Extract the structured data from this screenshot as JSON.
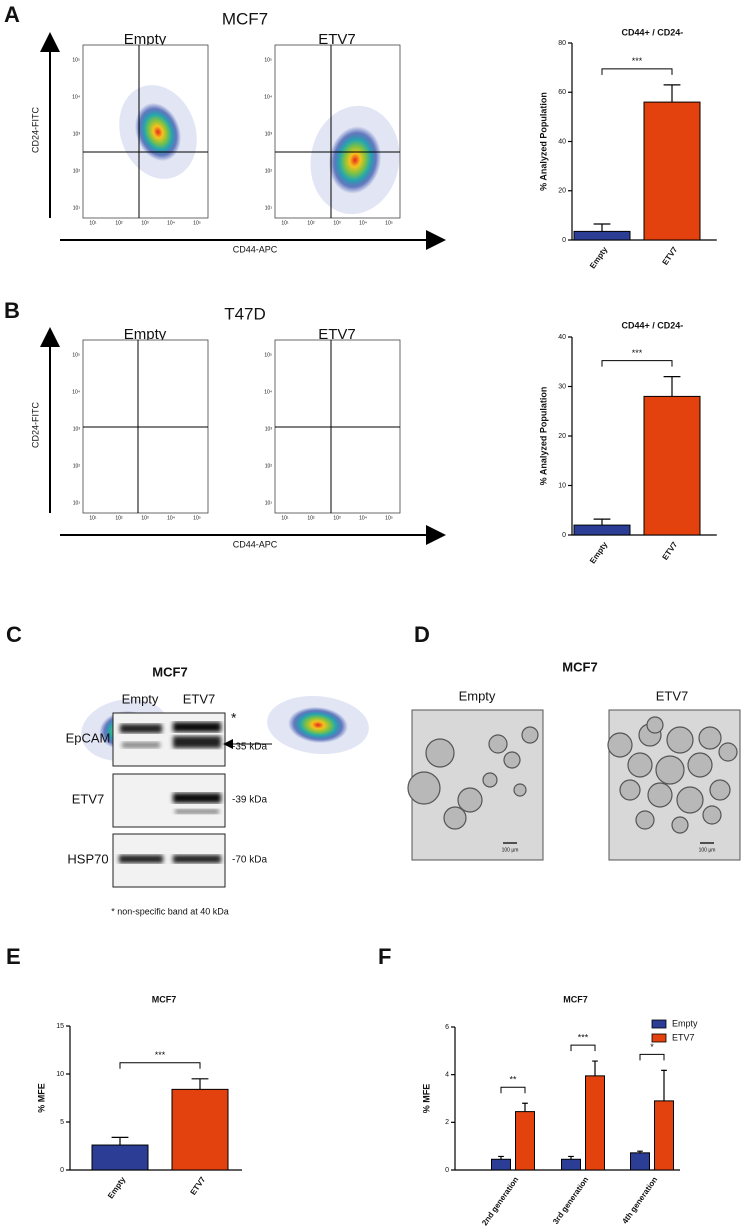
{
  "labels": {
    "panels": [
      "A",
      "B",
      "C",
      "D",
      "E",
      "F"
    ]
  },
  "flow": [
    {
      "title": "MCF7",
      "samples": [
        "Empty",
        "ETV7"
      ],
      "ylabel": "CD24-FITC",
      "xlabel": "CD44-APC",
      "ticks": [
        "10¹",
        "10²",
        "10³",
        "10⁴",
        "10⁵"
      ]
    },
    {
      "title": "T47D",
      "samples": [
        "Empty",
        "ETV7"
      ],
      "ylabel": "CD24-FITC",
      "xlabel": "CD44-APC",
      "ticks": [
        "10¹",
        "10²",
        "10³",
        "10⁴",
        "10⁵"
      ]
    }
  ],
  "blot": {
    "title": "MCF7",
    "lanes": [
      "Empty",
      "ETV7"
    ],
    "rows": [
      {
        "label": "EpCAM",
        "size": "-35 kDa"
      },
      {
        "label": "ETV7",
        "size": "-39 kDa"
      },
      {
        "label": "HSP70",
        "size": "-70 kDa"
      }
    ],
    "asterisk": "*",
    "note": "* non-specific band at 40 kDa"
  },
  "spheres": {
    "title": "MCF7",
    "samples": [
      "Empty",
      "ETV7"
    ],
    "scale": "100 µm"
  },
  "chart_data": [
    {
      "type": "bar",
      "title": "CD44+ / CD24-",
      "ylabel": "% Analyzed Population",
      "categories": [
        "Empty",
        "ETV7"
      ],
      "values": [
        3.5,
        56
      ],
      "errors": [
        3,
        7
      ],
      "colors": [
        "#2b3d94",
        "#e3420f"
      ],
      "ylim": [
        0,
        80
      ],
      "yticks": [
        0,
        20,
        40,
        60,
        80
      ],
      "significance": [
        "***"
      ]
    },
    {
      "type": "bar",
      "title": "CD44+ / CD24-",
      "ylabel": "% Analyzed Population",
      "categories": [
        "Empty",
        "ETV7"
      ],
      "values": [
        2,
        28
      ],
      "errors": [
        1.2,
        4
      ],
      "colors": [
        "#2b3d94",
        "#e3420f"
      ],
      "ylim": [
        0,
        40
      ],
      "yticks": [
        0,
        10,
        20,
        30,
        40
      ],
      "significance": [
        "***"
      ]
    },
    {
      "type": "bar",
      "title": "MCF7",
      "ylabel": "% MFE",
      "categories": [
        "Empty",
        "ETV7"
      ],
      "values": [
        2.6,
        8.4
      ],
      "errors": [
        0.8,
        1.1
      ],
      "colors": [
        "#2b3d94",
        "#e3420f"
      ],
      "ylim": [
        0,
        15
      ],
      "yticks": [
        0,
        5,
        10,
        15
      ],
      "significance": [
        "***"
      ]
    },
    {
      "type": "grouped-bar",
      "title": "MCF7",
      "ylabel": "% MFE",
      "categories": [
        "2nd generation",
        "3rd generation",
        "4th generation"
      ],
      "series": [
        {
          "name": "Empty",
          "color": "#2b3d94",
          "values": [
            0.45,
            0.45,
            0.72
          ],
          "errors": [
            0.12,
            0.12,
            0.07
          ]
        },
        {
          "name": "ETV7",
          "color": "#e3420f",
          "values": [
            2.45,
            3.95,
            2.9
          ],
          "errors": [
            0.35,
            0.62,
            1.28
          ]
        }
      ],
      "ylim": [
        0,
        6
      ],
      "yticks": [
        0,
        2,
        4,
        6
      ],
      "significance": [
        "**",
        "***",
        "*"
      ],
      "legend": "upper right"
    }
  ]
}
